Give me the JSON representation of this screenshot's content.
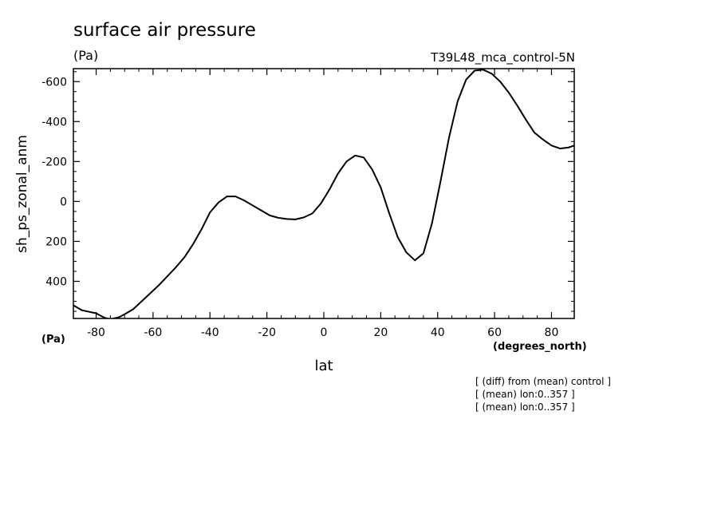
{
  "chart_data": {
    "type": "line",
    "title": "surface air pressure",
    "units": "(Pa)",
    "run_label": "T39L48_mca_control-5N",
    "ylabel": "sh_ps_zonal_anm",
    "xlabel": "lat",
    "x_units": "(degrees_north)",
    "y_units_corner": "(Pa)",
    "notes": [
      "[ (diff) from (mean) control ]",
      "[ (mean) lon:0..357 ]",
      "[ (mean) lon:0..357 ]"
    ],
    "xlim": [
      -88,
      88
    ],
    "ylim": [
      586,
      -665
    ],
    "y_inverted": true,
    "xticks": [
      -80,
      -60,
      -40,
      -20,
      0,
      20,
      40,
      60,
      80
    ],
    "xtick_labels": [
      "-80",
      "-60",
      "-40",
      "-20",
      "0",
      "20",
      "40",
      "60",
      "80"
    ],
    "yticks": [
      -600,
      -400,
      -200,
      0,
      200,
      400
    ],
    "ytick_labels": [
      "-600",
      "-400",
      "-200",
      "0",
      "200",
      "400"
    ],
    "grid": false,
    "series": [
      {
        "x": [
          -88,
          -85,
          -80,
          -77,
          -75,
          -72,
          -70,
          -67,
          -64,
          -61,
          -58,
          -55,
          -52,
          -49,
          -46,
          -43,
          -40,
          -37,
          -34,
          -31,
          -28,
          -25,
          -22,
          -19,
          -16,
          -13,
          -10,
          -7,
          -4,
          -1,
          2,
          5,
          8,
          11,
          14,
          17,
          20,
          23,
          26,
          29,
          32,
          35,
          38,
          41,
          44,
          47,
          50,
          53,
          56,
          59,
          62,
          65,
          68,
          71,
          74,
          77,
          80,
          83,
          86,
          88
        ],
        "y": [
          520,
          545,
          560,
          583,
          590,
          580,
          565,
          540,
          500,
          460,
          420,
          375,
          330,
          280,
          215,
          140,
          55,
          5,
          -25,
          -25,
          -5,
          20,
          45,
          70,
          82,
          88,
          90,
          80,
          60,
          10,
          -60,
          -140,
          -200,
          -230,
          -220,
          -160,
          -70,
          60,
          180,
          255,
          295,
          260,
          110,
          -100,
          -320,
          -500,
          -610,
          -655,
          -660,
          -640,
          -600,
          -545,
          -480,
          -410,
          -345,
          -310,
          -280,
          -265,
          -270,
          -280
        ]
      }
    ]
  }
}
